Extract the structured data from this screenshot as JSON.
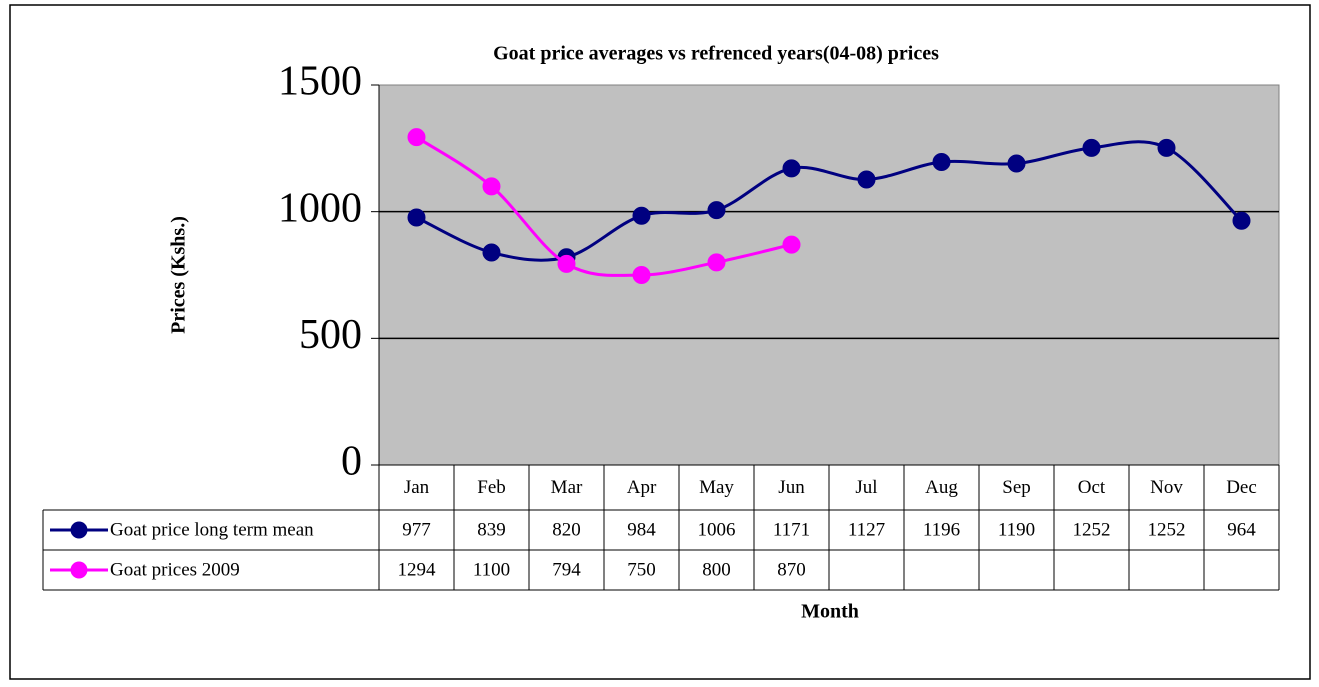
{
  "chart_data": {
    "type": "line",
    "title": "Goat price averages vs refrenced years(04-08)  prices",
    "x_label": "Month",
    "y_label": "Prices (Kshs.)",
    "categories": [
      "Jan",
      "Feb",
      "Mar",
      "Apr",
      "May",
      "Jun",
      "Jul",
      "Aug",
      "Sep",
      "Oct",
      "Nov",
      "Dec"
    ],
    "series": [
      {
        "name": "Goat price long term mean",
        "color": "#000080",
        "values": [
          977,
          839,
          820,
          984,
          1006,
          1171,
          1127,
          1196,
          1190,
          1252,
          1252,
          964
        ]
      },
      {
        "name": "Goat prices 2009",
        "color": "#ff00ff",
        "values": [
          1294,
          1100,
          794,
          750,
          800,
          870,
          null,
          null,
          null,
          null,
          null,
          null
        ]
      }
    ],
    "ylim": [
      0,
      1500
    ],
    "yticks": [
      0,
      500,
      1000,
      1500
    ],
    "grid": true,
    "smooth": true
  }
}
